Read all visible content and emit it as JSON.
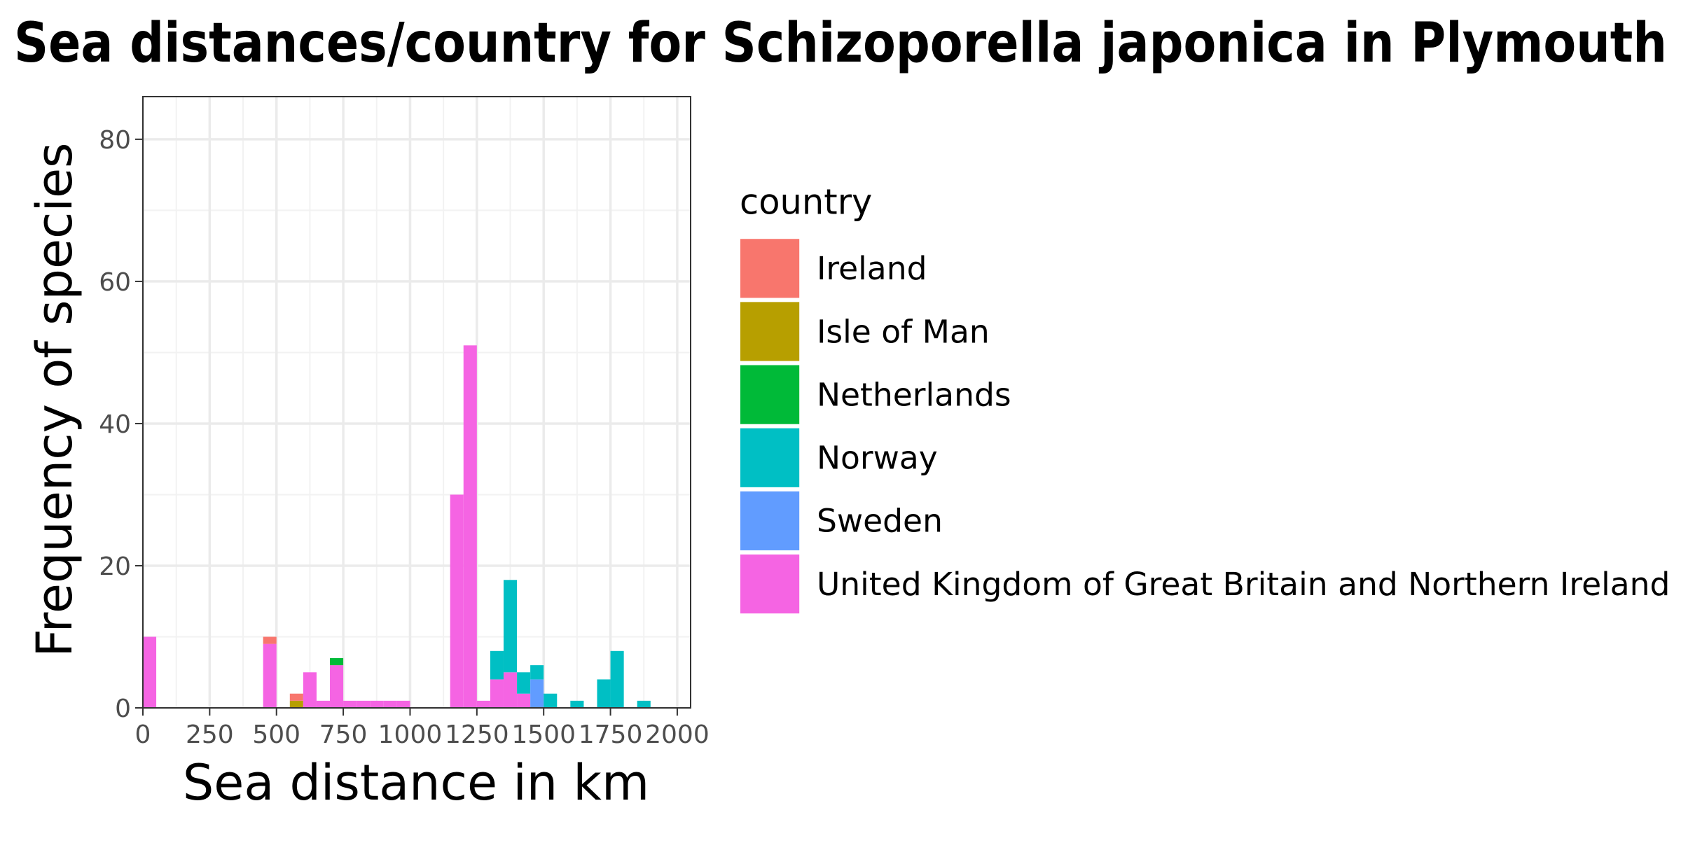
{
  "chart_data": {
    "type": "bar",
    "stacked": true,
    "title": "Sea distances/country for Schizoporella japonica in Plymouth",
    "xlabel": "Sea distance in km",
    "ylabel": "Frequency of species",
    "xlim": [
      0,
      2050
    ],
    "ylim": [
      0,
      86
    ],
    "x_ticks": [
      0,
      250,
      500,
      750,
      1000,
      1250,
      1500,
      1750,
      2000
    ],
    "x_tick_labels": [
      "0",
      "250",
      "500",
      "750",
      "1000",
      "1250",
      "1500",
      "1750",
      "2000"
    ],
    "y_ticks": [
      0,
      20,
      40,
      60,
      80
    ],
    "y_tick_labels": [
      "0",
      "20",
      "40",
      "60",
      "80"
    ],
    "grid": true,
    "bin_width_km": 50,
    "legend": {
      "title": "country",
      "position": "right"
    },
    "series": [
      {
        "name": "Ireland",
        "color": "#F8766D"
      },
      {
        "name": "Isle of Man",
        "color": "#B79F00"
      },
      {
        "name": "Netherlands",
        "color": "#00BA38"
      },
      {
        "name": "Norway",
        "color": "#00BFC4"
      },
      {
        "name": "Sweden",
        "color": "#619CFF"
      },
      {
        "name": "United Kingdom of Great Britain and Northern Ireland",
        "color": "#F564E3"
      }
    ],
    "bins": [
      {
        "x0": 0,
        "x1": 50,
        "counts": {
          "United Kingdom of Great Britain and Northern Ireland": 10
        }
      },
      {
        "x0": 450,
        "x1": 500,
        "counts": {
          "United Kingdom of Great Britain and Northern Ireland": 9,
          "Ireland": 1
        }
      },
      {
        "x0": 550,
        "x1": 600,
        "counts": {
          "Isle of Man": 1,
          "Ireland": 1
        }
      },
      {
        "x0": 600,
        "x1": 650,
        "counts": {
          "United Kingdom of Great Britain and Northern Ireland": 5
        }
      },
      {
        "x0": 650,
        "x1": 700,
        "counts": {
          "United Kingdom of Great Britain and Northern Ireland": 1
        }
      },
      {
        "x0": 700,
        "x1": 750,
        "counts": {
          "United Kingdom of Great Britain and Northern Ireland": 6,
          "Netherlands": 1
        }
      },
      {
        "x0": 750,
        "x1": 800,
        "counts": {
          "United Kingdom of Great Britain and Northern Ireland": 1
        }
      },
      {
        "x0": 800,
        "x1": 850,
        "counts": {
          "United Kingdom of Great Britain and Northern Ireland": 1
        }
      },
      {
        "x0": 850,
        "x1": 900,
        "counts": {
          "United Kingdom of Great Britain and Northern Ireland": 1
        }
      },
      {
        "x0": 900,
        "x1": 950,
        "counts": {
          "United Kingdom of Great Britain and Northern Ireland": 1
        }
      },
      {
        "x0": 950,
        "x1": 1000,
        "counts": {
          "United Kingdom of Great Britain and Northern Ireland": 1
        }
      },
      {
        "x0": 1150,
        "x1": 1200,
        "counts": {
          "United Kingdom of Great Britain and Northern Ireland": 30
        }
      },
      {
        "x0": 1200,
        "x1": 1250,
        "counts": {
          "United Kingdom of Great Britain and Northern Ireland": 51
        }
      },
      {
        "x0": 1250,
        "x1": 1300,
        "counts": {
          "United Kingdom of Great Britain and Northern Ireland": 1
        }
      },
      {
        "x0": 1300,
        "x1": 1350,
        "counts": {
          "United Kingdom of Great Britain and Northern Ireland": 4,
          "Norway": 4
        }
      },
      {
        "x0": 1350,
        "x1": 1400,
        "counts": {
          "United Kingdom of Great Britain and Northern Ireland": 5,
          "Norway": 13
        }
      },
      {
        "x0": 1400,
        "x1": 1450,
        "counts": {
          "United Kingdom of Great Britain and Northern Ireland": 2,
          "Norway": 3
        }
      },
      {
        "x0": 1450,
        "x1": 1500,
        "counts": {
          "Sweden": 4,
          "Norway": 2
        }
      },
      {
        "x0": 1500,
        "x1": 1550,
        "counts": {
          "Norway": 2
        }
      },
      {
        "x0": 1600,
        "x1": 1650,
        "counts": {
          "Norway": 1
        }
      },
      {
        "x0": 1700,
        "x1": 1750,
        "counts": {
          "Norway": 4
        }
      },
      {
        "x0": 1750,
        "x1": 1800,
        "counts": {
          "Norway": 8
        }
      },
      {
        "x0": 1850,
        "x1": 1900,
        "counts": {
          "Norway": 1
        }
      }
    ]
  }
}
